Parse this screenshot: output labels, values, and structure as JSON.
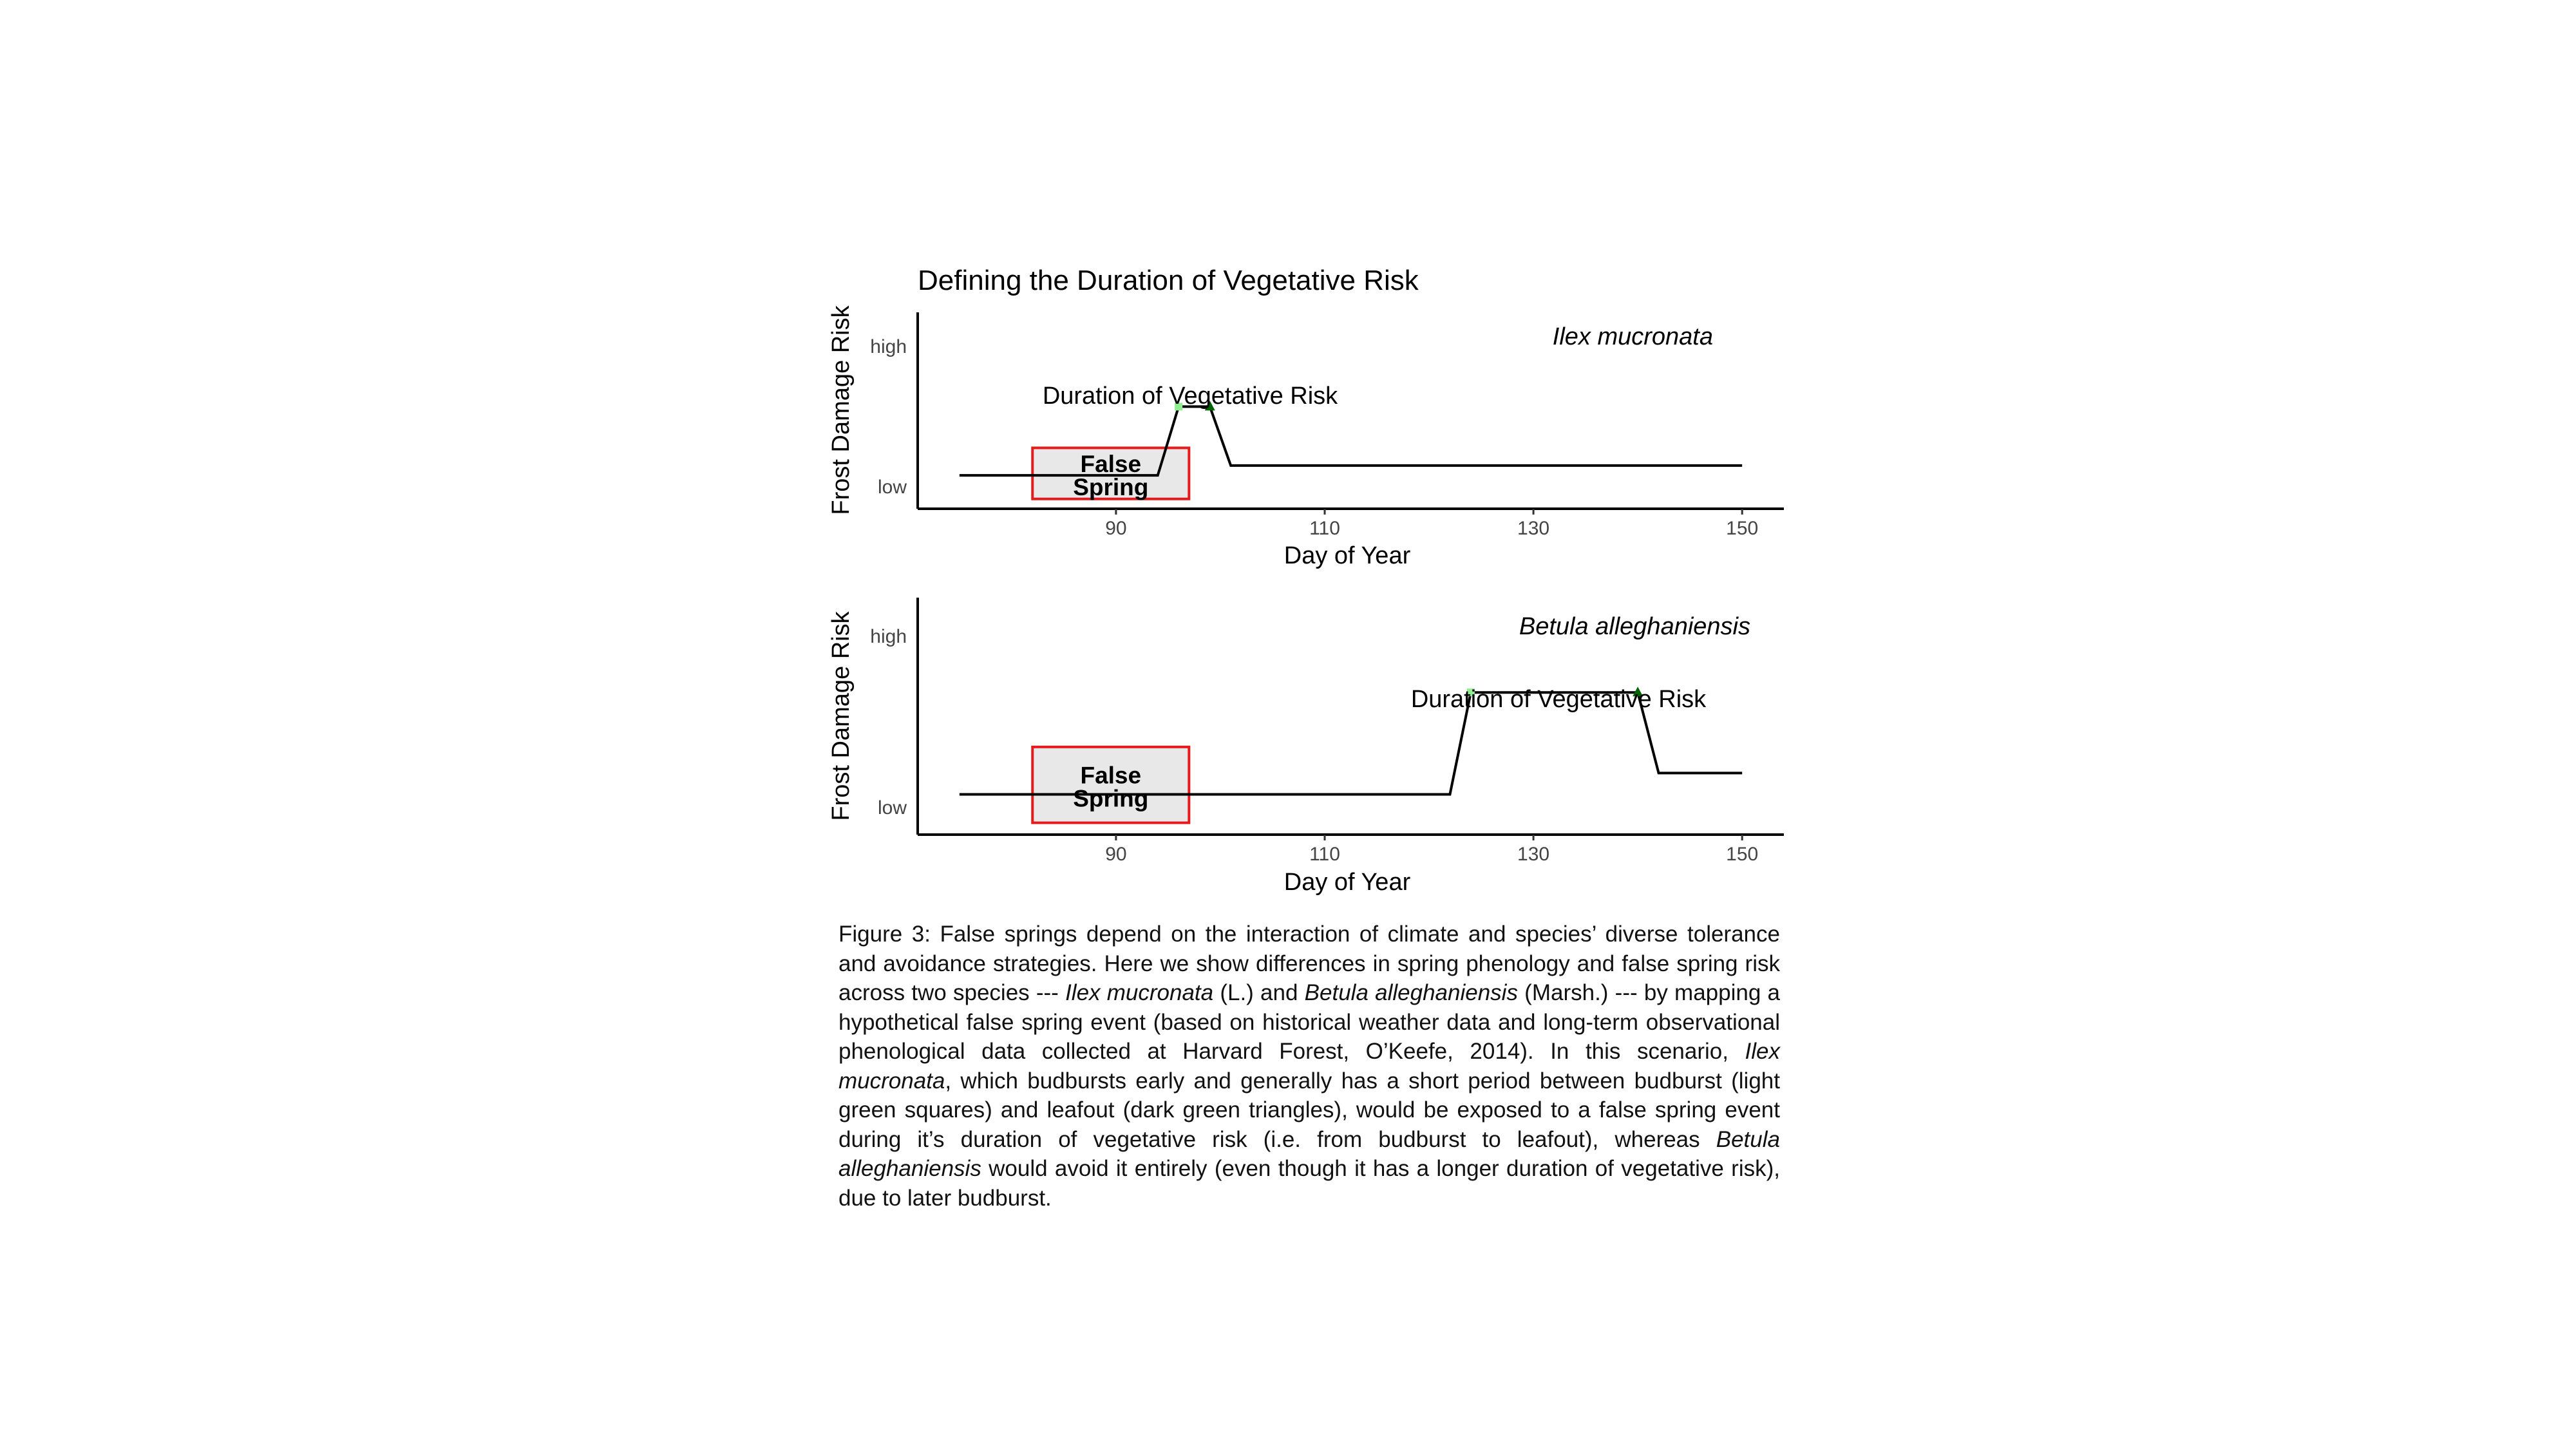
{
  "figure": {
    "title": "Defining the Duration of Vegetative Risk",
    "panels": [
      {
        "species": "Ilex mucronata",
        "annotation": "Duration of Vegetative Risk",
        "false_spring_label_1": "False",
        "false_spring_label_2": "Spring"
      },
      {
        "species": "Betula alleghaniensis",
        "annotation": "Duration of Vegetative Risk",
        "false_spring_label_1": "False",
        "false_spring_label_2": "Spring"
      }
    ]
  },
  "chart_data": [
    {
      "type": "line",
      "species": "Ilex mucronata",
      "xlabel": "Day of Year",
      "ylabel": "Frost Damage Risk",
      "x_ticks": [
        90,
        110,
        130,
        150
      ],
      "y_tick_labels": [
        "low",
        "high"
      ],
      "xlim": [
        71,
        154
      ],
      "ylim": [
        0,
        1
      ],
      "x": [
        75,
        94,
        96,
        99,
        101,
        150
      ],
      "y": [
        0.17,
        0.17,
        0.52,
        0.52,
        0.22,
        0.22
      ],
      "budburst": {
        "x": 96,
        "y": 0.52,
        "marker": "square",
        "color": "#90ee90"
      },
      "leafout": {
        "x": 99,
        "y": 0.52,
        "marker": "triangle",
        "color": "#006400"
      },
      "false_spring_window": [
        82,
        97
      ],
      "false_spring_box_y": [
        0.05,
        0.31
      ],
      "colors": {
        "line": "#000000",
        "box_border": "#e41a1c",
        "box_fill": "#e8e8e8"
      }
    },
    {
      "type": "line",
      "species": "Betula alleghaniensis",
      "xlabel": "Day of Year",
      "ylabel": "Frost Damage Risk",
      "x_ticks": [
        90,
        110,
        130,
        150
      ],
      "y_tick_labels": [
        "low",
        "high"
      ],
      "xlim": [
        71,
        154
      ],
      "ylim": [
        0,
        1
      ],
      "x": [
        75,
        122,
        124,
        140,
        142,
        150
      ],
      "y": [
        0.17,
        0.17,
        0.6,
        0.6,
        0.26,
        0.26
      ],
      "budburst": {
        "x": 124,
        "y": 0.6,
        "marker": "square",
        "color": "#90ee90"
      },
      "leafout": {
        "x": 140,
        "y": 0.6,
        "marker": "triangle",
        "color": "#006400"
      },
      "false_spring_window": [
        82,
        97
      ],
      "false_spring_box_y": [
        0.05,
        0.37
      ],
      "colors": {
        "line": "#000000",
        "box_border": "#e41a1c",
        "box_fill": "#e8e8e8"
      }
    }
  ],
  "caption": {
    "p1": "Figure 3: False springs depend on the interaction of climate and species’ diverse tolerance and avoidance strategies. Here we show differences in spring phenology and false spring risk across two species --- ",
    "sp1": "Ilex mucronata",
    "p2": " (L.) and ",
    "sp2": "Betula alleghaniensis",
    "p3": " (Marsh.) --- by mapping a hypothetical false spring event (based on historical weather data and long-term observational phenological data collected at Harvard Forest, O’Keefe, 2014). In this scenario, ",
    "sp3": "Ilex mucronata",
    "p4": ", which budbursts early and generally has a short period between budburst (light green squares) and leafout (dark green triangles), would be exposed to a false spring event during it’s duration of vegetative risk (i.e. from budburst to leafout), whereas ",
    "sp4": "Betula alleghaniensis",
    "p5": " would avoid it entirely (even though it has a longer duration of vegetative risk), due to later budburst."
  }
}
